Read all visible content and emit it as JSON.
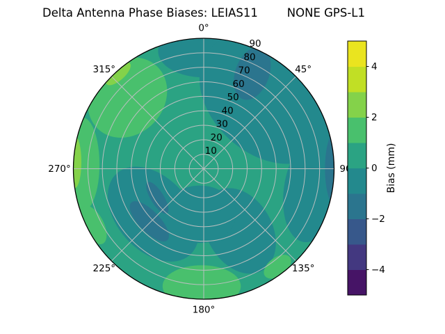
{
  "chart_data": {
    "type": "polar_filled_contour",
    "title": "Delta Antenna Phase Biases: LEIAS11        NONE GPS-L1",
    "title_parts": {
      "left": "Delta Antenna Phase Biases: LEIAS11",
      "right": "NONE GPS-L1"
    },
    "antenna": "LEIAS11",
    "radome": "NONE",
    "signal": "GPS-L1",
    "grid": true,
    "theta_ticks": [
      {
        "label": "0°",
        "az_deg": 0
      },
      {
        "label": "45°",
        "az_deg": 45
      },
      {
        "label": "90°",
        "az_deg": 90
      },
      {
        "label": "135°",
        "az_deg": 135
      },
      {
        "label": "180°",
        "az_deg": 180
      },
      {
        "label": "225°",
        "az_deg": 225
      },
      {
        "label": "270°",
        "az_deg": 270
      },
      {
        "label": "315°",
        "az_deg": 315
      }
    ],
    "r_ticks": {
      "values": [
        10,
        20,
        30,
        40,
        50,
        60,
        70,
        80,
        90
      ],
      "labels": [
        "10",
        "20",
        "30",
        "40",
        "50",
        "60",
        "70",
        "80",
        "90"
      ],
      "label_azimuth_deg": 22.5,
      "max": 90
    },
    "colorbar": {
      "label": "Bias (mm)",
      "tick_values": [
        -4,
        -2,
        0,
        2,
        4
      ],
      "tick_labels": [
        "−4",
        "−2",
        "0",
        "2",
        "4"
      ],
      "vmin": -5,
      "vmax": 5,
      "colormap": "viridis",
      "band_colors_bottom_to_top": [
        "#461466",
        "#433880",
        "#37588b",
        "#2b758e",
        "#23898d",
        "#2ba383",
        "#49c06d",
        "#84d24a",
        "#c1df25",
        "#eae41f"
      ]
    },
    "background_bias_mm": 0.5,
    "contour_regions": [
      {
        "azimuth_deg": 0,
        "radius_frac": 0.9,
        "rx_frac": 0.35,
        "ry_frac": 0.2,
        "rot_deg": 0,
        "bias_mm": -0.5
      },
      {
        "azimuth_deg": 42,
        "radius_frac": 0.72,
        "rx_frac": 0.58,
        "ry_frac": 0.42,
        "rot_deg": 42,
        "bias_mm": -0.5
      },
      {
        "azimuth_deg": 100,
        "radius_frac": 0.85,
        "rx_frac": 0.42,
        "ry_frac": 0.22,
        "rot_deg": -80,
        "bias_mm": -0.5
      },
      {
        "azimuth_deg": 150,
        "radius_frac": 0.55,
        "rx_frac": 0.25,
        "ry_frac": 0.35,
        "rot_deg": -30,
        "bias_mm": -0.5
      },
      {
        "azimuth_deg": 228,
        "radius_frac": 0.52,
        "rx_frac": 0.42,
        "ry_frac": 0.28,
        "rot_deg": 48,
        "bias_mm": -0.5
      },
      {
        "azimuth_deg": 185,
        "radius_frac": 0.35,
        "rx_frac": 0.28,
        "ry_frac": 0.22,
        "rot_deg": 0,
        "bias_mm": -0.5
      },
      {
        "azimuth_deg": 27,
        "radius_frac": 0.82,
        "rx_frac": 0.13,
        "ry_frac": 0.21,
        "rot_deg": 20,
        "bias_mm": -1.5
      },
      {
        "azimuth_deg": 90,
        "radius_frac": 1.02,
        "rx_frac": 0.09,
        "ry_frac": 0.3,
        "rot_deg": 0,
        "bias_mm": -1.5
      },
      {
        "azimuth_deg": 226,
        "radius_frac": 0.58,
        "rx_frac": 0.2,
        "ry_frac": 0.08,
        "rot_deg": 46,
        "bias_mm": -1.5
      },
      {
        "azimuth_deg": 238,
        "radius_frac": 0.42,
        "rx_frac": 0.14,
        "ry_frac": 0.05,
        "rot_deg": 58,
        "bias_mm": -1.5
      },
      {
        "azimuth_deg": 313,
        "radius_frac": 0.8,
        "rx_frac": 0.33,
        "ry_frac": 0.28,
        "rot_deg": -47,
        "bias_mm": 1.5
      },
      {
        "azimuth_deg": 272,
        "radius_frac": 0.93,
        "rx_frac": 0.13,
        "ry_frac": 0.36,
        "rot_deg": 0,
        "bias_mm": 1.5
      },
      {
        "azimuth_deg": 181,
        "radius_frac": 0.9,
        "rx_frac": 0.3,
        "ry_frac": 0.16,
        "rot_deg": 0,
        "bias_mm": 1.5
      },
      {
        "azimuth_deg": 143,
        "radius_frac": 0.94,
        "rx_frac": 0.12,
        "ry_frac": 0.07,
        "rot_deg": -37,
        "bias_mm": 1.5
      },
      {
        "azimuth_deg": 243,
        "radius_frac": 0.95,
        "rx_frac": 0.16,
        "ry_frac": 0.08,
        "rot_deg": 63,
        "bias_mm": 1.5
      },
      {
        "azimuth_deg": 273,
        "radius_frac": 0.99,
        "rx_frac": 0.05,
        "ry_frac": 0.2,
        "rot_deg": 0,
        "bias_mm": 2.5
      },
      {
        "azimuth_deg": 318,
        "radius_frac": 0.98,
        "rx_frac": 0.12,
        "ry_frac": 0.05,
        "rot_deg": -42,
        "bias_mm": 2.5
      }
    ]
  }
}
